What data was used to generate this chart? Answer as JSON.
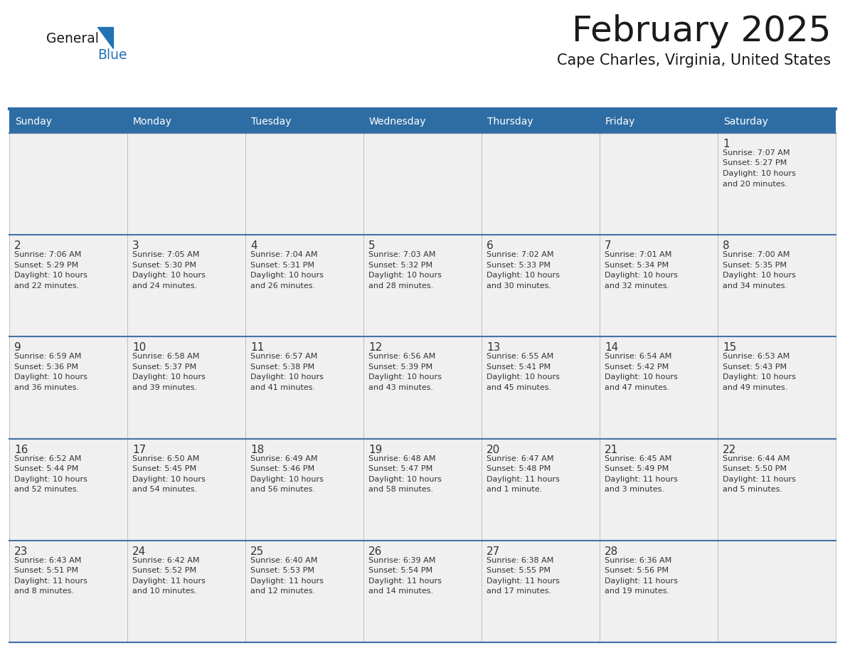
{
  "title": "February 2025",
  "subtitle": "Cape Charles, Virginia, United States",
  "days_of_week": [
    "Sunday",
    "Monday",
    "Tuesday",
    "Wednesday",
    "Thursday",
    "Friday",
    "Saturday"
  ],
  "header_bg": "#2E6DA4",
  "header_text": "#FFFFFF",
  "cell_bg": "#F0F0F0",
  "border_color": "#2E6DA4",
  "row_border_color": "#4472A8",
  "day_number_color": "#333333",
  "text_color": "#333333",
  "logo_general_color": "#1a1a1a",
  "logo_blue_color": "#2272B6",
  "title_color": "#1a1a1a",
  "subtitle_color": "#1a1a1a",
  "calendar_data": [
    {
      "day": 1,
      "row": 0,
      "col": 6,
      "sunrise": "7:07 AM",
      "sunset": "5:27 PM",
      "daylight": "10 hours and 20 minutes"
    },
    {
      "day": 2,
      "row": 1,
      "col": 0,
      "sunrise": "7:06 AM",
      "sunset": "5:29 PM",
      "daylight": "10 hours and 22 minutes"
    },
    {
      "day": 3,
      "row": 1,
      "col": 1,
      "sunrise": "7:05 AM",
      "sunset": "5:30 PM",
      "daylight": "10 hours and 24 minutes"
    },
    {
      "day": 4,
      "row": 1,
      "col": 2,
      "sunrise": "7:04 AM",
      "sunset": "5:31 PM",
      "daylight": "10 hours and 26 minutes"
    },
    {
      "day": 5,
      "row": 1,
      "col": 3,
      "sunrise": "7:03 AM",
      "sunset": "5:32 PM",
      "daylight": "10 hours and 28 minutes"
    },
    {
      "day": 6,
      "row": 1,
      "col": 4,
      "sunrise": "7:02 AM",
      "sunset": "5:33 PM",
      "daylight": "10 hours and 30 minutes"
    },
    {
      "day": 7,
      "row": 1,
      "col": 5,
      "sunrise": "7:01 AM",
      "sunset": "5:34 PM",
      "daylight": "10 hours and 32 minutes"
    },
    {
      "day": 8,
      "row": 1,
      "col": 6,
      "sunrise": "7:00 AM",
      "sunset": "5:35 PM",
      "daylight": "10 hours and 34 minutes"
    },
    {
      "day": 9,
      "row": 2,
      "col": 0,
      "sunrise": "6:59 AM",
      "sunset": "5:36 PM",
      "daylight": "10 hours and 36 minutes"
    },
    {
      "day": 10,
      "row": 2,
      "col": 1,
      "sunrise": "6:58 AM",
      "sunset": "5:37 PM",
      "daylight": "10 hours and 39 minutes"
    },
    {
      "day": 11,
      "row": 2,
      "col": 2,
      "sunrise": "6:57 AM",
      "sunset": "5:38 PM",
      "daylight": "10 hours and 41 minutes"
    },
    {
      "day": 12,
      "row": 2,
      "col": 3,
      "sunrise": "6:56 AM",
      "sunset": "5:39 PM",
      "daylight": "10 hours and 43 minutes"
    },
    {
      "day": 13,
      "row": 2,
      "col": 4,
      "sunrise": "6:55 AM",
      "sunset": "5:41 PM",
      "daylight": "10 hours and 45 minutes"
    },
    {
      "day": 14,
      "row": 2,
      "col": 5,
      "sunrise": "6:54 AM",
      "sunset": "5:42 PM",
      "daylight": "10 hours and 47 minutes"
    },
    {
      "day": 15,
      "row": 2,
      "col": 6,
      "sunrise": "6:53 AM",
      "sunset": "5:43 PM",
      "daylight": "10 hours and 49 minutes"
    },
    {
      "day": 16,
      "row": 3,
      "col": 0,
      "sunrise": "6:52 AM",
      "sunset": "5:44 PM",
      "daylight": "10 hours and 52 minutes"
    },
    {
      "day": 17,
      "row": 3,
      "col": 1,
      "sunrise": "6:50 AM",
      "sunset": "5:45 PM",
      "daylight": "10 hours and 54 minutes"
    },
    {
      "day": 18,
      "row": 3,
      "col": 2,
      "sunrise": "6:49 AM",
      "sunset": "5:46 PM",
      "daylight": "10 hours and 56 minutes"
    },
    {
      "day": 19,
      "row": 3,
      "col": 3,
      "sunrise": "6:48 AM",
      "sunset": "5:47 PM",
      "daylight": "10 hours and 58 minutes"
    },
    {
      "day": 20,
      "row": 3,
      "col": 4,
      "sunrise": "6:47 AM",
      "sunset": "5:48 PM",
      "daylight": "11 hours and 1 minute"
    },
    {
      "day": 21,
      "row": 3,
      "col": 5,
      "sunrise": "6:45 AM",
      "sunset": "5:49 PM",
      "daylight": "11 hours and 3 minutes"
    },
    {
      "day": 22,
      "row": 3,
      "col": 6,
      "sunrise": "6:44 AM",
      "sunset": "5:50 PM",
      "daylight": "11 hours and 5 minutes"
    },
    {
      "day": 23,
      "row": 4,
      "col": 0,
      "sunrise": "6:43 AM",
      "sunset": "5:51 PM",
      "daylight": "11 hours and 8 minutes"
    },
    {
      "day": 24,
      "row": 4,
      "col": 1,
      "sunrise": "6:42 AM",
      "sunset": "5:52 PM",
      "daylight": "11 hours and 10 minutes"
    },
    {
      "day": 25,
      "row": 4,
      "col": 2,
      "sunrise": "6:40 AM",
      "sunset": "5:53 PM",
      "daylight": "11 hours and 12 minutes"
    },
    {
      "day": 26,
      "row": 4,
      "col": 3,
      "sunrise": "6:39 AM",
      "sunset": "5:54 PM",
      "daylight": "11 hours and 14 minutes"
    },
    {
      "day": 27,
      "row": 4,
      "col": 4,
      "sunrise": "6:38 AM",
      "sunset": "5:55 PM",
      "daylight": "11 hours and 17 minutes"
    },
    {
      "day": 28,
      "row": 4,
      "col": 5,
      "sunrise": "6:36 AM",
      "sunset": "5:56 PM",
      "daylight": "11 hours and 19 minutes"
    }
  ]
}
